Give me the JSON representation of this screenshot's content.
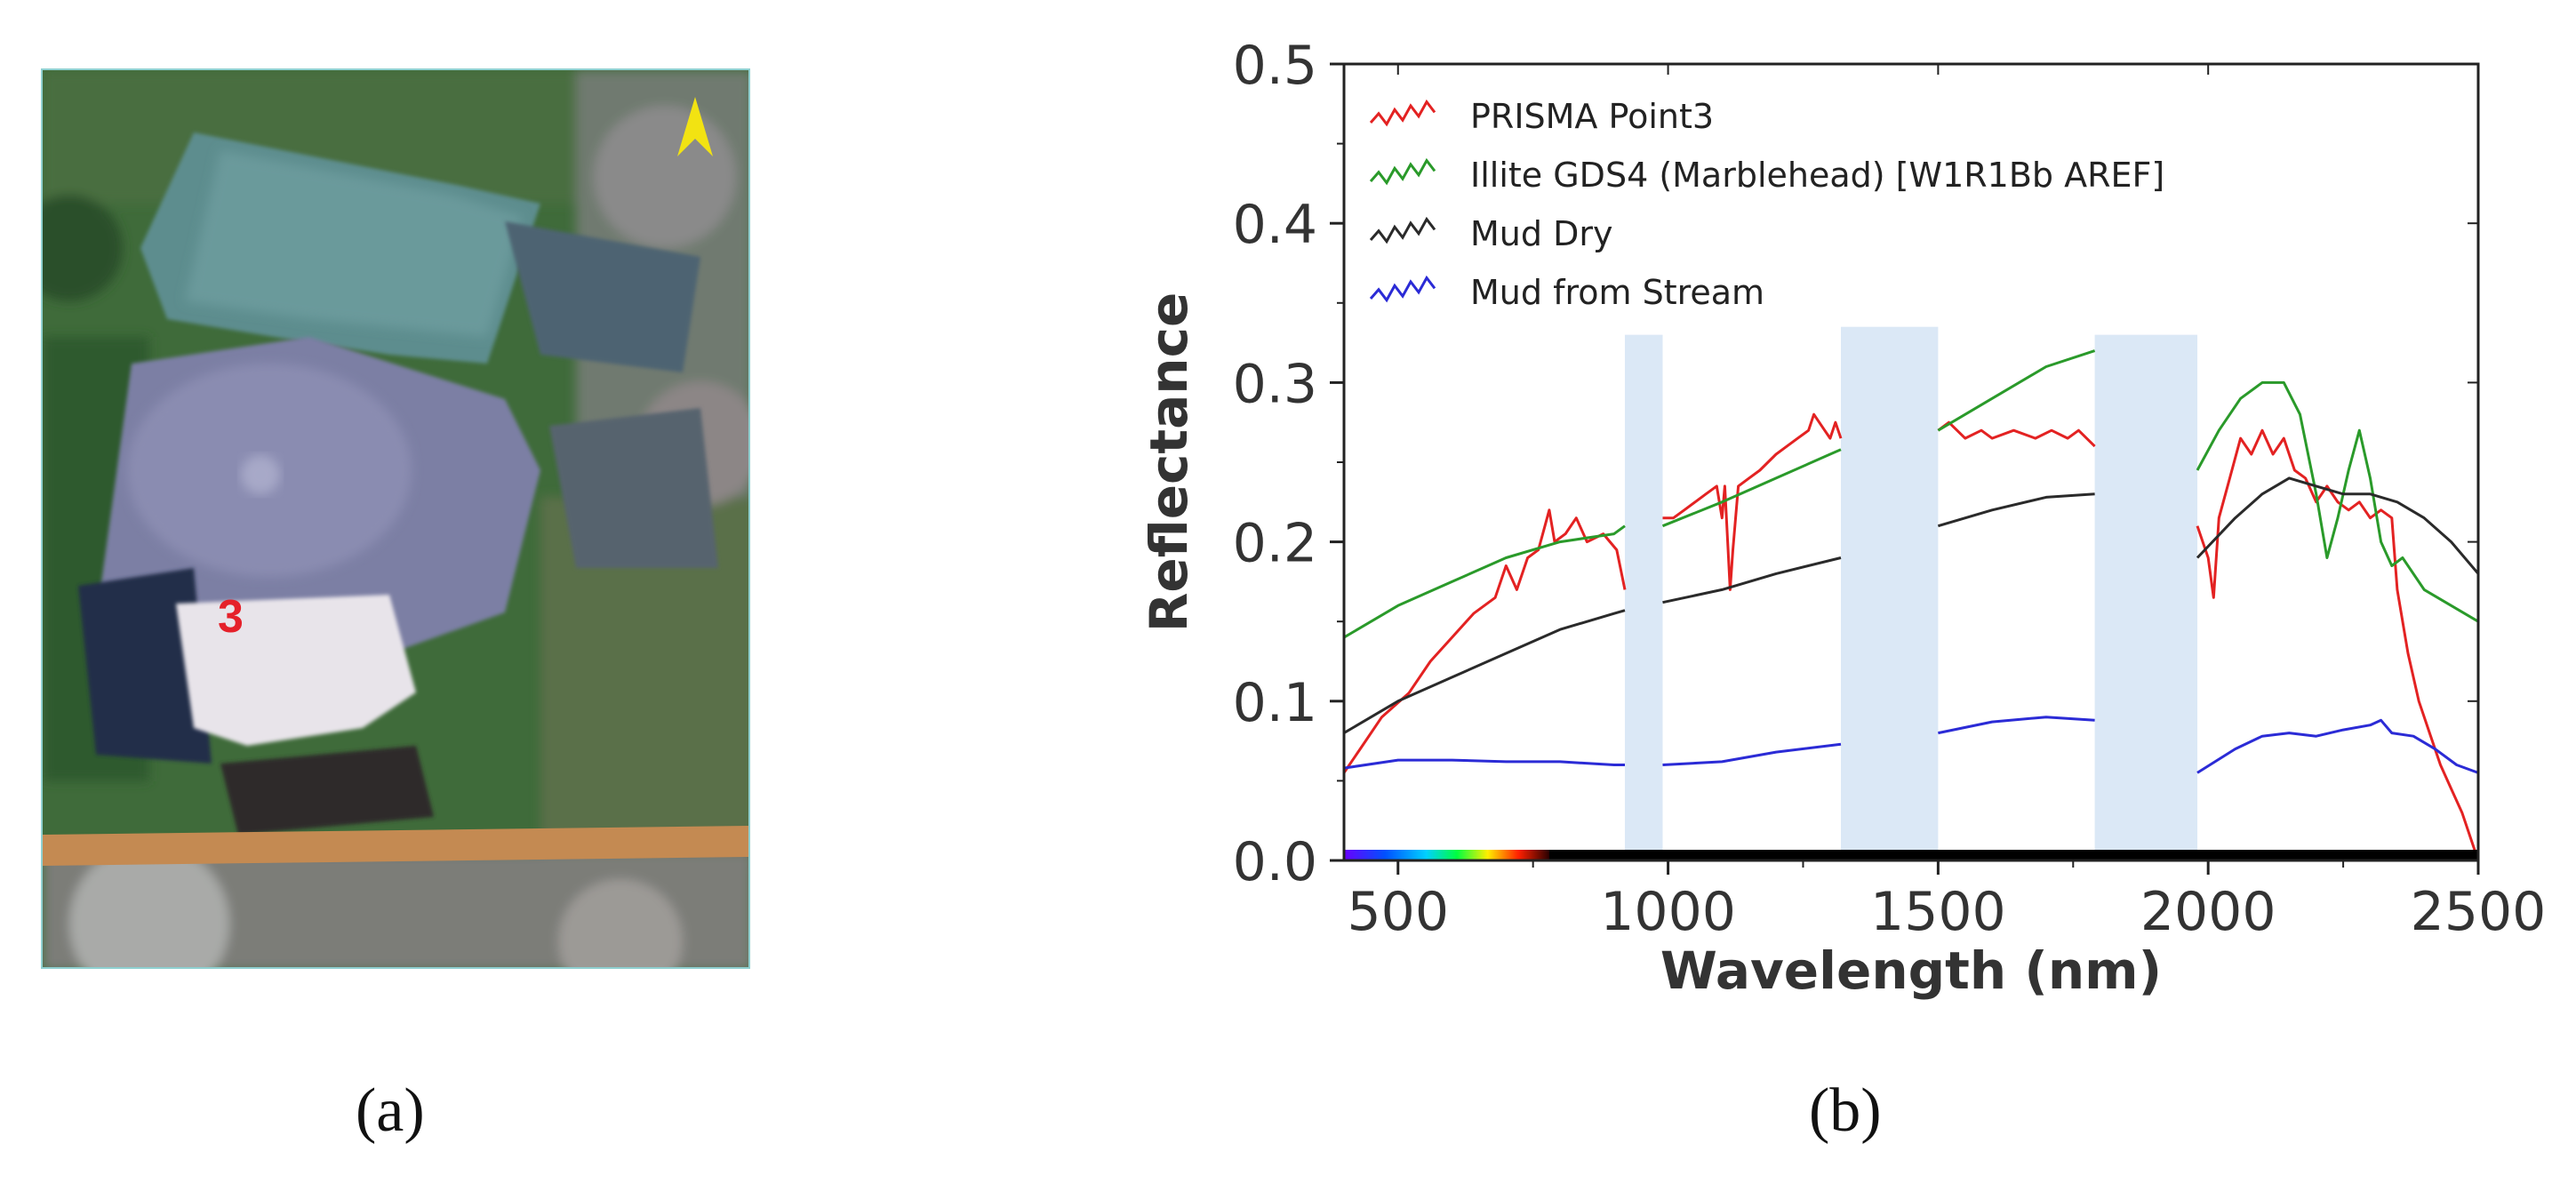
{
  "panel_a": {
    "caption": "(a)",
    "point_label": "3",
    "north_arrow_icon": "north-arrow-icon",
    "label_color": "#e5202a",
    "arrow_color": "#f2e312"
  },
  "panel_b": {
    "caption": "(b)"
  },
  "chart_data": {
    "type": "line",
    "title": "",
    "xlabel": "Wavelength (nm)",
    "ylabel": "Reflectance",
    "xlim": [
      400,
      2500
    ],
    "ylim": [
      0.0,
      0.5
    ],
    "xticks": [
      500,
      1000,
      1500,
      2000,
      2500
    ],
    "yticks": [
      0.0,
      0.1,
      0.2,
      0.3,
      0.4,
      0.5
    ],
    "xtick_labels": [
      "500",
      "1000",
      "1500",
      "2000",
      "2500"
    ],
    "ytick_labels": [
      "0.0",
      "0.1",
      "0.2",
      "0.3",
      "0.4",
      "0.5"
    ],
    "legend_position": "top-left",
    "masked_bands": [
      [
        920,
        990,
        0.33
      ],
      [
        1320,
        1500,
        0.335
      ],
      [
        1790,
        1980,
        0.33
      ]
    ],
    "series": [
      {
        "name": "PRISMA Point3",
        "color": "#e32222",
        "segments": [
          [
            [
              400,
              0.055
            ],
            [
              430,
              0.07
            ],
            [
              470,
              0.09
            ],
            [
              520,
              0.105
            ],
            [
              560,
              0.125
            ],
            [
              600,
              0.14
            ],
            [
              640,
              0.155
            ],
            [
              680,
              0.165
            ],
            [
              700,
              0.185
            ],
            [
              720,
              0.17
            ],
            [
              740,
              0.19
            ],
            [
              760,
              0.195
            ],
            [
              780,
              0.22
            ],
            [
              790,
              0.2
            ],
            [
              810,
              0.205
            ],
            [
              830,
              0.215
            ],
            [
              850,
              0.2
            ],
            [
              880,
              0.205
            ],
            [
              905,
              0.195
            ],
            [
              920,
              0.17
            ]
          ],
          [
            [
              990,
              0.215
            ],
            [
              1010,
              0.215
            ],
            [
              1030,
              0.22
            ],
            [
              1050,
              0.225
            ],
            [
              1070,
              0.23
            ],
            [
              1090,
              0.235
            ],
            [
              1100,
              0.215
            ],
            [
              1105,
              0.235
            ],
            [
              1115,
              0.17
            ],
            [
              1120,
              0.195
            ],
            [
              1130,
              0.235
            ],
            [
              1150,
              0.24
            ],
            [
              1170,
              0.245
            ],
            [
              1200,
              0.255
            ],
            [
              1220,
              0.26
            ],
            [
              1240,
              0.265
            ],
            [
              1260,
              0.27
            ],
            [
              1270,
              0.28
            ],
            [
              1290,
              0.27
            ],
            [
              1300,
              0.265
            ],
            [
              1310,
              0.275
            ],
            [
              1320,
              0.265
            ]
          ],
          [
            [
              1500,
              0.27
            ],
            [
              1520,
              0.275
            ],
            [
              1550,
              0.265
            ],
            [
              1580,
              0.27
            ],
            [
              1600,
              0.265
            ],
            [
              1640,
              0.27
            ],
            [
              1680,
              0.265
            ],
            [
              1710,
              0.27
            ],
            [
              1740,
              0.265
            ],
            [
              1760,
              0.27
            ],
            [
              1790,
              0.26
            ]
          ],
          [
            [
              1980,
              0.21
            ],
            [
              2000,
              0.19
            ],
            [
              2010,
              0.165
            ],
            [
              2020,
              0.215
            ],
            [
              2040,
              0.24
            ],
            [
              2060,
              0.265
            ],
            [
              2080,
              0.255
            ],
            [
              2100,
              0.27
            ],
            [
              2120,
              0.255
            ],
            [
              2140,
              0.265
            ],
            [
              2160,
              0.245
            ],
            [
              2180,
              0.24
            ],
            [
              2200,
              0.225
            ],
            [
              2220,
              0.235
            ],
            [
              2240,
              0.225
            ],
            [
              2260,
              0.22
            ],
            [
              2280,
              0.225
            ],
            [
              2300,
              0.215
            ],
            [
              2320,
              0.22
            ],
            [
              2340,
              0.215
            ],
            [
              2350,
              0.17
            ],
            [
              2370,
              0.13
            ],
            [
              2390,
              0.1
            ],
            [
              2410,
              0.08
            ],
            [
              2430,
              0.06
            ],
            [
              2450,
              0.045
            ],
            [
              2470,
              0.03
            ],
            [
              2490,
              0.01
            ],
            [
              2500,
              0.0
            ]
          ]
        ]
      },
      {
        "name": "Illite GDS4 (Marblehead) [W1R1Bb AREF]",
        "color": "#2a9a2a",
        "segments": [
          [
            [
              400,
              0.14
            ],
            [
              500,
              0.16
            ],
            [
              600,
              0.175
            ],
            [
              700,
              0.19
            ],
            [
              800,
              0.2
            ],
            [
              900,
              0.205
            ],
            [
              920,
              0.21
            ]
          ],
          [
            [
              990,
              0.21
            ],
            [
              1100,
              0.225
            ],
            [
              1200,
              0.24
            ],
            [
              1300,
              0.255
            ],
            [
              1320,
              0.258
            ]
          ],
          [
            [
              1500,
              0.27
            ],
            [
              1600,
              0.29
            ],
            [
              1700,
              0.31
            ],
            [
              1790,
              0.32
            ]
          ],
          [
            [
              1980,
              0.245
            ],
            [
              2020,
              0.27
            ],
            [
              2060,
              0.29
            ],
            [
              2100,
              0.3
            ],
            [
              2140,
              0.3
            ],
            [
              2170,
              0.28
            ],
            [
              2200,
              0.23
            ],
            [
              2220,
              0.19
            ],
            [
              2240,
              0.215
            ],
            [
              2260,
              0.245
            ],
            [
              2280,
              0.27
            ],
            [
              2300,
              0.24
            ],
            [
              2320,
              0.2
            ],
            [
              2340,
              0.185
            ],
            [
              2360,
              0.19
            ],
            [
              2400,
              0.17
            ],
            [
              2450,
              0.16
            ],
            [
              2500,
              0.15
            ]
          ]
        ]
      },
      {
        "name": "Mud Dry",
        "color": "#2a2a2a",
        "segments": [
          [
            [
              400,
              0.08
            ],
            [
              500,
              0.1
            ],
            [
              600,
              0.115
            ],
            [
              700,
              0.13
            ],
            [
              800,
              0.145
            ],
            [
              900,
              0.155
            ],
            [
              920,
              0.157
            ]
          ],
          [
            [
              990,
              0.162
            ],
            [
              1100,
              0.17
            ],
            [
              1200,
              0.18
            ],
            [
              1320,
              0.19
            ]
          ],
          [
            [
              1500,
              0.21
            ],
            [
              1600,
              0.22
            ],
            [
              1700,
              0.228
            ],
            [
              1790,
              0.23
            ]
          ],
          [
            [
              1980,
              0.19
            ],
            [
              2050,
              0.215
            ],
            [
              2100,
              0.23
            ],
            [
              2150,
              0.24
            ],
            [
              2200,
              0.235
            ],
            [
              2250,
              0.23
            ],
            [
              2300,
              0.23
            ],
            [
              2350,
              0.225
            ],
            [
              2400,
              0.215
            ],
            [
              2450,
              0.2
            ],
            [
              2500,
              0.18
            ]
          ]
        ]
      },
      {
        "name": "Mud from Stream",
        "color": "#2b2bd6",
        "segments": [
          [
            [
              400,
              0.058
            ],
            [
              500,
              0.063
            ],
            [
              600,
              0.063
            ],
            [
              700,
              0.062
            ],
            [
              800,
              0.062
            ],
            [
              900,
              0.06
            ],
            [
              920,
              0.06
            ]
          ],
          [
            [
              990,
              0.06
            ],
            [
              1100,
              0.062
            ],
            [
              1200,
              0.068
            ],
            [
              1320,
              0.073
            ]
          ],
          [
            [
              1500,
              0.08
            ],
            [
              1600,
              0.087
            ],
            [
              1700,
              0.09
            ],
            [
              1790,
              0.088
            ]
          ],
          [
            [
              1980,
              0.055
            ],
            [
              2050,
              0.07
            ],
            [
              2100,
              0.078
            ],
            [
              2150,
              0.08
            ],
            [
              2200,
              0.078
            ],
            [
              2250,
              0.082
            ],
            [
              2300,
              0.085
            ],
            [
              2320,
              0.088
            ],
            [
              2340,
              0.08
            ],
            [
              2380,
              0.078
            ],
            [
              2420,
              0.07
            ],
            [
              2460,
              0.06
            ],
            [
              2500,
              0.055
            ]
          ]
        ]
      }
    ]
  }
}
